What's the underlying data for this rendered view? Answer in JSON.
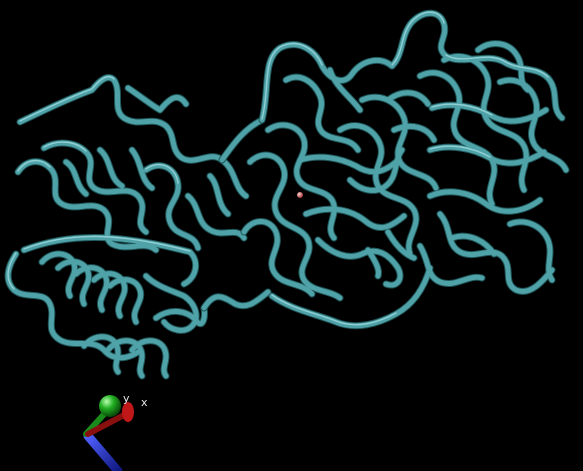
{
  "scene": {
    "background_color": "#000000",
    "ribbon_color": "#4fa3a8",
    "ribbon_highlight": "#9fdade",
    "ribbon_shadow": "#1f5558",
    "ligand_color": "#e07070",
    "style": "cartoon ribbon (tube) rendering of a two-domain protein"
  },
  "axes": {
    "x_label": "x",
    "y_label": "y",
    "x_color": "#c01818",
    "y_color": "#22b022",
    "z_color": "#2030d0"
  }
}
